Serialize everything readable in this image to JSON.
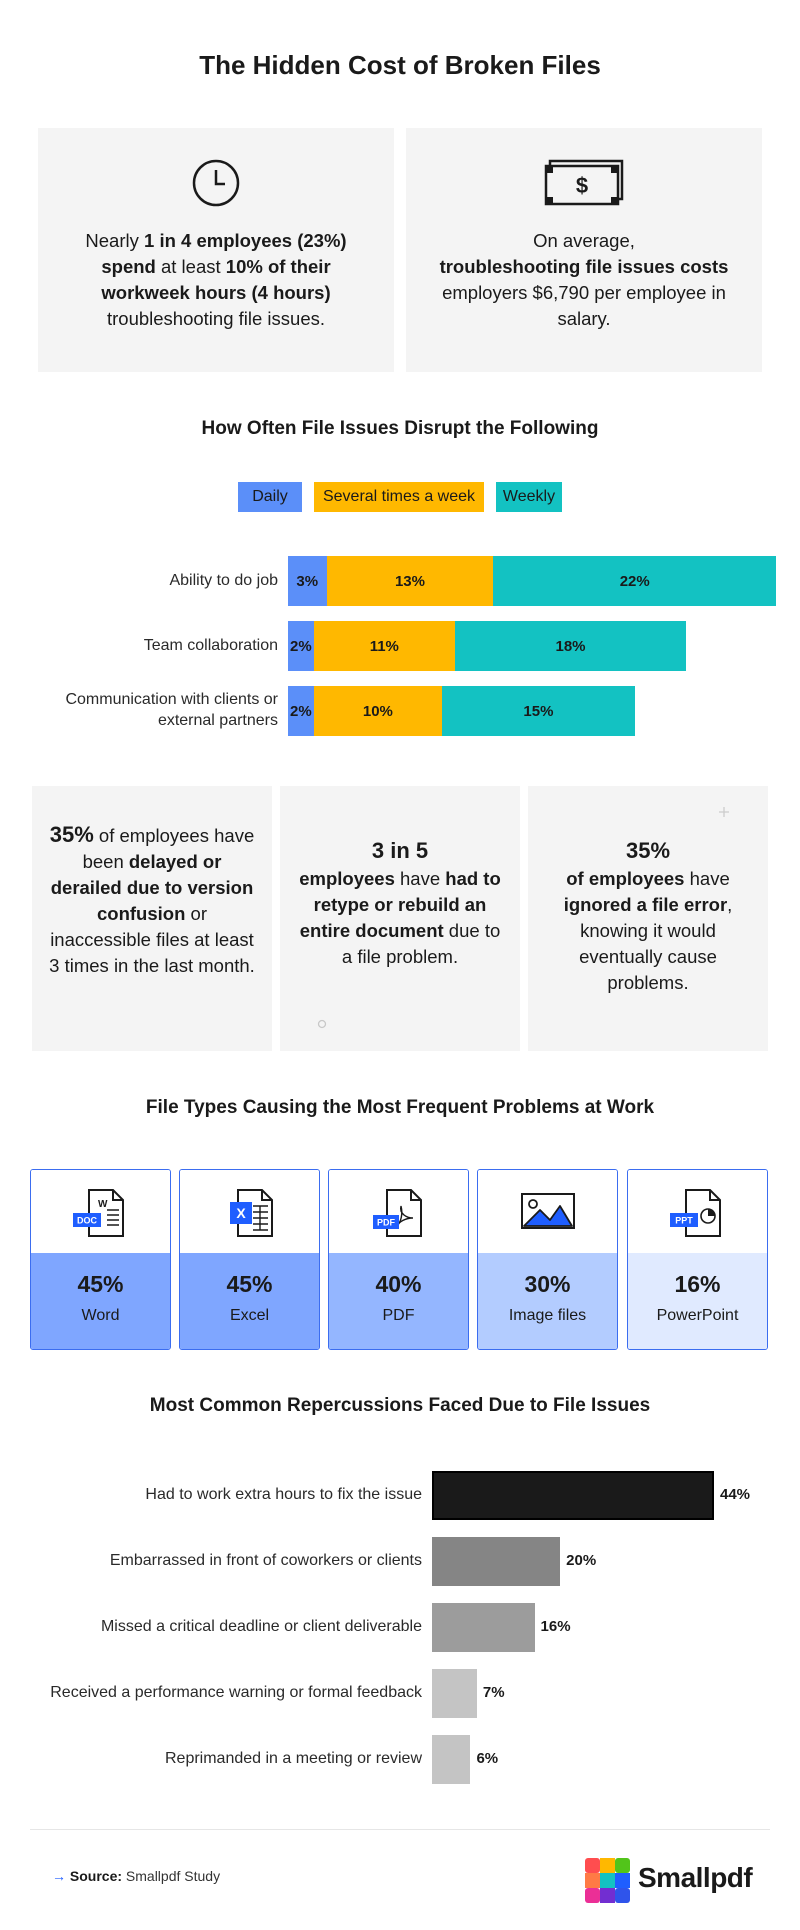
{
  "title": "The Hidden Cost of Broken Files",
  "stats": [
    {
      "icon": "clock-icon",
      "pre1": "Nearly ",
      "b1": "1 in 4 employees (23%)",
      "pre2": " ",
      "b2": "spend",
      "mid": " at least ",
      "b3": "10% of their workweek hours (4 hours)",
      "post": " troubleshooting file issues."
    },
    {
      "icon": "money-icon",
      "pre1": "On average, ",
      "b1": "troubleshooting file issues costs",
      "post": " employers $6,790 per employee in salary."
    }
  ],
  "disrupt": {
    "title": "How Often File Issues Disrupt the Following",
    "legend": [
      "Daily",
      "Several times a week",
      "Weekly"
    ],
    "colors": [
      "#5b8ff9",
      "#ffb800",
      "#13c2c2"
    ]
  },
  "file_types_title": "File Types Causing the Most Frequent Problems at Work",
  "file_types": [
    {
      "icon": "word-doc-icon",
      "badge": "DOC",
      "pct": "45%",
      "name": "Word",
      "color": "#7fa6ff"
    },
    {
      "icon": "excel-icon",
      "badge": "X",
      "pct": "45%",
      "name": "Excel",
      "color": "#7fa6ff"
    },
    {
      "icon": "pdf-icon",
      "badge": "PDF",
      "pct": "40%",
      "name": "PDF",
      "color": "#94b6ff"
    },
    {
      "icon": "image-file-icon",
      "badge": "",
      "pct": "30%",
      "name": "Image files",
      "color": "#b3ccff"
    },
    {
      "icon": "powerpoint-icon",
      "badge": "PPT",
      "pct": "16%",
      "name": "PowerPoint",
      "color": "#e0eaff"
    }
  ],
  "facts": [
    {
      "big": "35%",
      "t1": " of employees have been ",
      "b1": "delayed or derailed due to version confusion",
      "t2": " or inaccessible files at least 3 times in the last month."
    },
    {
      "big": "3 in 5",
      "b1": "employees",
      "t1": " have ",
      "b2": "had to retype or rebuild an entire document",
      "t2": " due to a file problem."
    },
    {
      "big": "35%",
      "b1": "of employees",
      "t1": " have ",
      "b2": "ignored a file error",
      "t2": ", knowing it would eventually cause problems."
    }
  ],
  "repercussions_title": "Most Common Repercussions Faced Due to File Issues",
  "chart_data": [
    {
      "type": "bar",
      "orientation": "horizontal",
      "stacked": true,
      "title": "How Often File Issues Disrupt the Following",
      "categories": [
        "Ability to do job",
        "Team collaboration",
        "Communication with clients or external partners"
      ],
      "series": [
        {
          "name": "Daily",
          "values": [
            3,
            2,
            2
          ],
          "labels": [
            "3%",
            "2%",
            "2%"
          ]
        },
        {
          "name": "Several times a week",
          "values": [
            13,
            11,
            10
          ],
          "labels": [
            "13%",
            "11%",
            "10%"
          ]
        },
        {
          "name": "Weekly",
          "values": [
            22,
            18,
            15
          ],
          "labels": [
            "22%",
            "18%",
            "15%"
          ]
        }
      ],
      "xlim": [
        0,
        38
      ],
      "legend": "top-center"
    },
    {
      "type": "bar",
      "orientation": "horizontal",
      "title": "Most Common Repercussions Faced Due to File Issues",
      "categories": [
        "Had to work extra hours to fix the issue",
        "Embarrassed in front of coworkers or clients",
        "Missed a critical deadline or client deliverable",
        "Received a performance warning or formal feedback",
        "Reprimanded in a meeting or review"
      ],
      "values": [
        44,
        20,
        16,
        7,
        6
      ],
      "labels": [
        "44%",
        "20%",
        "16%",
        "7%",
        "6%"
      ],
      "colors": [
        "#1a1a1a",
        "#858585",
        "#9c9c9c",
        "#c4c4c4",
        "#c4c4c4"
      ],
      "xlim": [
        0,
        44
      ]
    }
  ],
  "source": {
    "label": "Source:",
    "text": "Smallpdf Study"
  },
  "brand": "Smallpdf"
}
